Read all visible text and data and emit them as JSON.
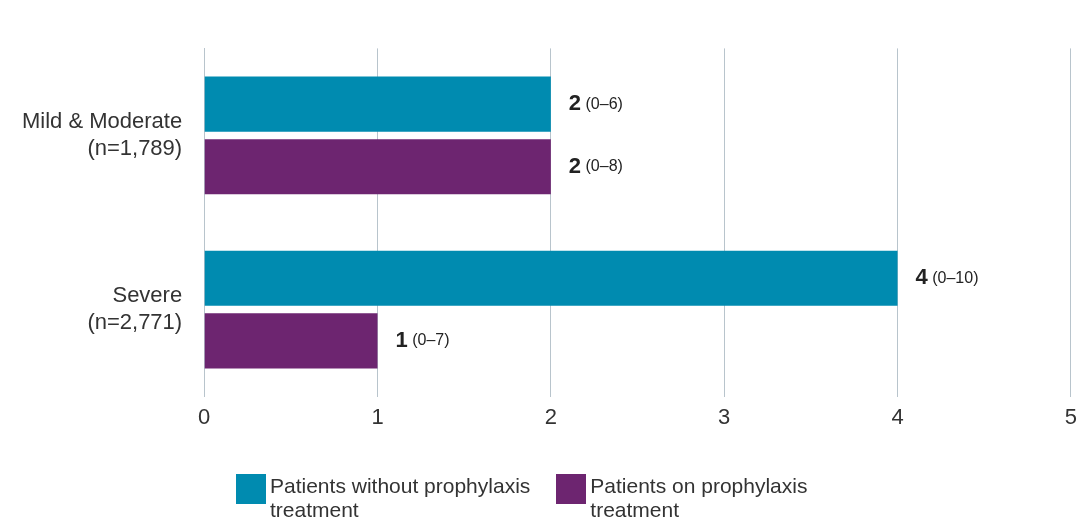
{
  "chart_data": {
    "type": "bar",
    "orientation": "horizontal",
    "categories": [
      "Mild & Moderate\n(n=1,789)",
      "Severe\n(n=2,771)"
    ],
    "series": [
      {
        "name": "Patients without prophylaxis\ntreatment",
        "color": "#008bb0",
        "values": [
          2,
          4
        ],
        "value_labels": [
          "2 (0–6)",
          "4 (0–10)"
        ]
      },
      {
        "name": "Patients on prophylaxis\ntreatment",
        "color": "#6d2570",
        "values": [
          2,
          1
        ],
        "value_labels": [
          "2 (0–8)",
          "1 (0–7)"
        ]
      }
    ],
    "xlim": [
      0,
      5
    ],
    "xticks": [
      0,
      1,
      2,
      3,
      4,
      5
    ],
    "grid": "x",
    "legend": "bottom"
  }
}
